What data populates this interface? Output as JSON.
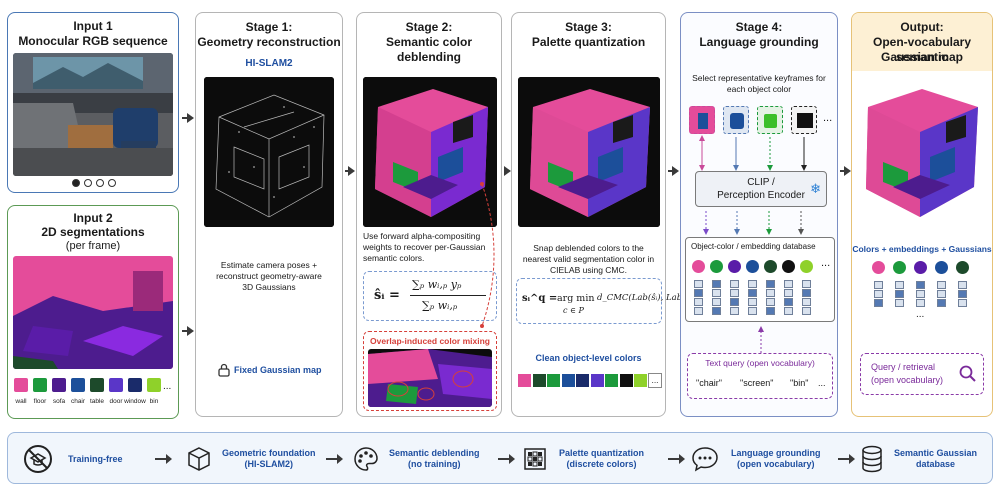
{
  "input1": {
    "title_line1": "Input 1",
    "title_line2": "Monocular RGB sequence",
    "carousel": [
      "active",
      "inactive",
      "inactive",
      "inactive"
    ]
  },
  "input2": {
    "title_line1": "Input 2",
    "title_line2": "2D segmentations",
    "title_line3": "(per frame)",
    "legend": [
      {
        "label": "wall",
        "color": "#e44c9a"
      },
      {
        "label": "floor",
        "color": "#1c9a3c"
      },
      {
        "label": "sofa",
        "color": "#4d1c8e"
      },
      {
        "label": "chair",
        "color": "#1c4f9a"
      },
      {
        "label": "table",
        "color": "#1d4a2b"
      },
      {
        "label": "door",
        "color": "#5a36c8"
      },
      {
        "label": "window",
        "color": "#1a2b6a"
      },
      {
        "label": "bin",
        "color": "#8fd12a"
      }
    ],
    "legend_more": "..."
  },
  "stage1": {
    "title_line1": "Stage 1:",
    "title_line2": "Geometry reconstruction",
    "method": "HI-SLAM2",
    "description": "Estimate camera poses + reconstruct geometry-aware 3D Gaussians",
    "footer": "Fixed Gaussian map",
    "footer_icon": "lock-icon"
  },
  "stage2": {
    "title_line1": "Stage 2:",
    "title_line2": "Semantic color deblending",
    "description": "Use forward alpha-compositing weights to recover per-Gaussian semantic colors.",
    "equation_lhs": "ŝᵢ =",
    "equation_num": "∑ₚ wᵢ,ₚ yₚ",
    "equation_den": "∑ₚ wᵢ,ₚ",
    "mixing_label": "Overlap-induced color mixing"
  },
  "stage3": {
    "title_line1": "Stage 3:",
    "title_line2": "Palette quantization",
    "description": "Snap deblended colors to the nearest valid segmentation color in CIELAB using CMC.",
    "equation_lhs": "sᵢ^q =",
    "equation_op": "arg min",
    "equation_sub": "c ∈ P",
    "equation_rhs": "d_CMC(Lab(ŝᵢ), Lab(c))",
    "palette_label": "Clean object-level colors",
    "palette": [
      "#e44c9a",
      "#1d4a2b",
      "#1c9a3c",
      "#1c4f9a",
      "#1a2b6a",
      "#5a36c8",
      "#1c9a3c",
      "#101010",
      "#8fd12a"
    ],
    "palette_more": "..."
  },
  "stage4": {
    "title_line1": "Stage 4:",
    "title_line2": "Language grounding",
    "keyframe_note": "Select representative keyframes for each object color",
    "keyframes_more": "...",
    "encoder_line1": "CLIP /",
    "encoder_line2": "Perception Encoder",
    "snowflake": "❄",
    "db_label": "Object-color / embedding database",
    "db_colors": [
      "#e44c9a",
      "#1c9a3c",
      "#5a1ca8",
      "#1c4f9a",
      "#1d4a2b",
      "#101010",
      "#8fd12a"
    ],
    "db_more": "...",
    "query_label": "Text query (open vocabulary)",
    "queries": [
      "\"chair\"",
      "\"screen\"",
      "\"bin\"",
      "..."
    ]
  },
  "output": {
    "title_line1": "Output:",
    "title_line2": "Open-vocabulary semantic",
    "title_line3": "Gaussian map",
    "caption": "Colors + embeddings + Gaussians",
    "colors": [
      "#e44c9a",
      "#1c9a3c",
      "#5a1ca8",
      "#1c4f9a",
      "#1d4a2b"
    ],
    "more": "...",
    "query_line1": "Query / retrieval",
    "query_line2": "(open vocabulary)",
    "query_icon": "search-icon"
  },
  "bottom": {
    "items": [
      {
        "label1": "Training-free",
        "label2": "",
        "icon": "no-training-icon"
      },
      {
        "label1": "Geometric foundation",
        "label2": "(HI-SLAM2)",
        "icon": "cube-icon"
      },
      {
        "label1": "Semantic deblending",
        "label2": "(no training)",
        "icon": "palette-icon"
      },
      {
        "label1": "Palette quantization",
        "label2": "(discrete colors)",
        "icon": "grid-icon"
      },
      {
        "label1": "Language grounding",
        "label2": "(open vocabulary)",
        "icon": "speech-bubble-icon"
      },
      {
        "label1": "Semantic Gaussian",
        "label2": "database",
        "icon": "database-icon"
      }
    ]
  },
  "colors": {
    "accent_blue": "#1f4fa0",
    "output_header": "#fdf0d4",
    "mixing_red": "#d6403a"
  }
}
